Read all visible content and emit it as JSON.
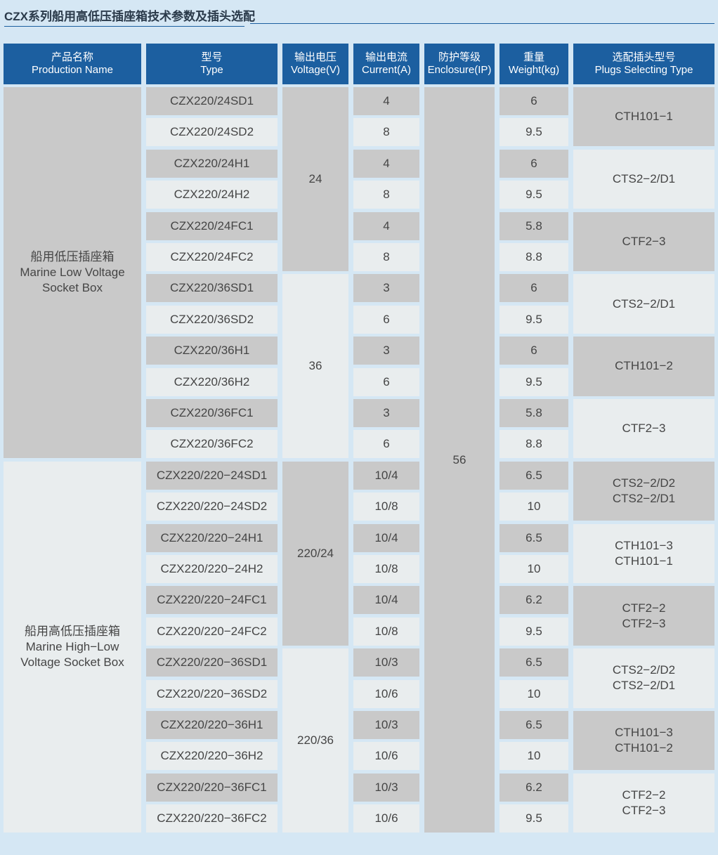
{
  "title": "CZX系列船用高低压插座箱技术参数及插头选配",
  "headers": [
    {
      "cn": "产品名称",
      "en": "Production Name"
    },
    {
      "cn": "型号",
      "en": "Type"
    },
    {
      "cn": "输出电压",
      "en": "Voltage(V)"
    },
    {
      "cn": "输出电流",
      "en": "Current(A)"
    },
    {
      "cn": "防护等级",
      "en": "Enclosure(IP)"
    },
    {
      "cn": "重量",
      "en": "Weight(kg)"
    },
    {
      "cn": "选配插头型号",
      "en": "Plugs Selecting Type"
    }
  ],
  "product_names": [
    {
      "cn": "船用低压插座箱",
      "en1": "Marine Low Voltage",
      "en2": "Socket Box"
    },
    {
      "cn": "船用高低压插座箱",
      "en1": "Marine High−Low",
      "en2": "Voltage Socket Box"
    }
  ],
  "voltages": [
    "24",
    "36",
    "220/24",
    "220/36"
  ],
  "enclosure": "56",
  "types": [
    "CZX220/24SD1",
    "CZX220/24SD2",
    "CZX220/24H1",
    "CZX220/24H2",
    "CZX220/24FC1",
    "CZX220/24FC2",
    "CZX220/36SD1",
    "CZX220/36SD2",
    "CZX220/36H1",
    "CZX220/36H2",
    "CZX220/36FC1",
    "CZX220/36FC2",
    "CZX220/220−24SD1",
    "CZX220/220−24SD2",
    "CZX220/220−24H1",
    "CZX220/220−24H2",
    "CZX220/220−24FC1",
    "CZX220/220−24FC2",
    "CZX220/220−36SD1",
    "CZX220/220−36SD2",
    "CZX220/220−36H1",
    "CZX220/220−36H2",
    "CZX220/220−36FC1",
    "CZX220/220−36FC2"
  ],
  "currents": [
    "4",
    "8",
    "4",
    "8",
    "4",
    "8",
    "3",
    "6",
    "3",
    "6",
    "3",
    "6",
    "10/4",
    "10/8",
    "10/4",
    "10/8",
    "10/4",
    "10/8",
    "10/3",
    "10/6",
    "10/3",
    "10/6",
    "10/3",
    "10/6"
  ],
  "weights": [
    "6",
    "9.5",
    "6",
    "9.5",
    "5.8",
    "8.8",
    "6",
    "9.5",
    "6",
    "9.5",
    "5.8",
    "8.8",
    "6.5",
    "10",
    "6.5",
    "10",
    "6.2",
    "9.5",
    "6.5",
    "10",
    "6.5",
    "10",
    "6.2",
    "9.5"
  ],
  "plugs": [
    [
      "CTH101−1"
    ],
    [
      "CTS2−2/D1"
    ],
    [
      "CTF2−3"
    ],
    [
      "CTS2−2/D1"
    ],
    [
      "CTH101−2"
    ],
    [
      "CTF2−3"
    ],
    [
      "CTS2−2/D2",
      "CTS2−2/D1"
    ],
    [
      "CTH101−3",
      "CTH101−1"
    ],
    [
      "CTF2−2",
      "CTF2−3"
    ],
    [
      "CTS2−2/D2",
      "CTS2−2/D1"
    ],
    [
      "CTH101−3",
      "CTH101−2"
    ],
    [
      "CTF2−2",
      "CTF2−3"
    ]
  ],
  "colors": {
    "background": "#d5e7f4",
    "header": "#1c5fa0",
    "cell_dark": "#c9c9c9",
    "cell_light": "#e9edee"
  }
}
